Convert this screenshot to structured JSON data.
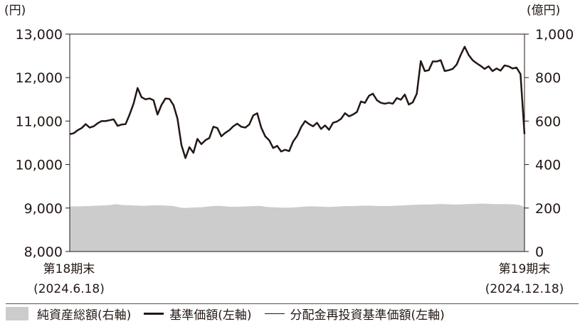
{
  "chart_data": {
    "type": "line",
    "left_unit": "(円)",
    "right_unit": "(億円)",
    "left_ylim": [
      8000,
      13000
    ],
    "right_ylim": [
      0,
      1000
    ],
    "left_ticks": [
      "13,000",
      "12,000",
      "11,000",
      "10,000",
      "9,000",
      "8,000"
    ],
    "right_ticks": [
      "1,000",
      "800",
      "600",
      "400",
      "200",
      "0"
    ],
    "x_start": {
      "line1": "第18期末",
      "line2": "(2024.6.18)"
    },
    "x_end": {
      "line1": "第19期末",
      "line2": "(2024.12.18)"
    },
    "grid": false,
    "legend_position": "bottom",
    "series": [
      {
        "name": "純資産総額(右軸)",
        "kind": "area",
        "axis": "right",
        "color": "#cccccc",
        "values": [
          207,
          208,
          208,
          209,
          210,
          211,
          212,
          214,
          218,
          214,
          213,
          212,
          211,
          210,
          212,
          213,
          212,
          211,
          209,
          203,
          200,
          202,
          203,
          204,
          207,
          209,
          210,
          208,
          206,
          206,
          207,
          208,
          209,
          210,
          206,
          204,
          203,
          202,
          202,
          203,
          205,
          207,
          208,
          207,
          206,
          205,
          206,
          208,
          209,
          209,
          210,
          211,
          211,
          210,
          209,
          209,
          210,
          211,
          212,
          214,
          215,
          216,
          216,
          217,
          218,
          218,
          217,
          216,
          217,
          218,
          219,
          220,
          220,
          219,
          218,
          218,
          218,
          217,
          215,
          205
        ]
      },
      {
        "name": "基準価額(左軸)",
        "kind": "line",
        "axis": "left",
        "color": "#231815",
        "width": 2.5,
        "values": [
          10700,
          10720,
          10790,
          10840,
          10930,
          10850,
          10880,
          10950,
          11000,
          11000,
          11020,
          11040,
          10890,
          10920,
          10930,
          11150,
          11400,
          11760,
          11550,
          11500,
          11520,
          11480,
          11150,
          11370,
          11520,
          11510,
          11370,
          11060,
          10450,
          10150,
          10400,
          10270,
          10590,
          10470,
          10560,
          10610,
          10870,
          10840,
          10650,
          10730,
          10790,
          10880,
          10940,
          10870,
          10850,
          10920,
          11130,
          11180,
          10850,
          10650,
          10560,
          10380,
          10430,
          10300,
          10340,
          10310,
          10530,
          10660,
          10860,
          11000,
          10930,
          10880,
          10960,
          10820,
          10900,
          10800,
          10960,
          10990,
          11050,
          11180,
          11110,
          11150,
          11210,
          11450,
          11420,
          11580,
          11630,
          11480,
          11420,
          11400,
          11420,
          11400,
          11530,
          11490,
          11610,
          11380,
          11430,
          11630,
          12380,
          12150,
          12170,
          12370,
          12370,
          12400,
          12150,
          12170,
          12200,
          12300,
          12520,
          12710,
          12520,
          12400,
          12330,
          12270,
          12200,
          12260,
          12150,
          12210,
          12160,
          12280,
          12260,
          12210,
          12230,
          12080,
          10700
        ]
      },
      {
        "name": "分配金再投資基準価額(左軸)",
        "kind": "line",
        "axis": "left",
        "color": "#231815",
        "width": 1,
        "values": [
          10700,
          10720,
          10790,
          10840,
          10930,
          10850,
          10880,
          10950,
          11000,
          11000,
          11020,
          11040,
          10890,
          10920,
          10930,
          11150,
          11400,
          11760,
          11550,
          11500,
          11520,
          11480,
          11150,
          11370,
          11520,
          11510,
          11370,
          11060,
          10450,
          10150,
          10400,
          10270,
          10590,
          10470,
          10560,
          10610,
          10870,
          10840,
          10650,
          10730,
          10790,
          10880,
          10940,
          10870,
          10850,
          10920,
          11130,
          11180,
          10850,
          10650,
          10560,
          10380,
          10430,
          10300,
          10340,
          10310,
          10530,
          10660,
          10860,
          11000,
          10930,
          10880,
          10960,
          10820,
          10900,
          10800,
          10960,
          10990,
          11050,
          11180,
          11110,
          11150,
          11210,
          11450,
          11420,
          11580,
          11630,
          11480,
          11420,
          11400,
          11420,
          11400,
          11530,
          11490,
          11610,
          11380,
          11430,
          11630,
          12380,
          12150,
          12170,
          12370,
          12370,
          12400,
          12150,
          12170,
          12200,
          12300,
          12520,
          12710,
          12520,
          12400,
          12330,
          12270,
          12200,
          12260,
          12150,
          12210,
          12160,
          12280,
          12260,
          12210,
          12230,
          12080,
          10700
        ]
      }
    ]
  },
  "legend": {
    "area_label": "純資産総額(右軸)",
    "thick_label": "基準価額(左軸)",
    "thin_label": "分配金再投資基準価額(左軸)"
  }
}
